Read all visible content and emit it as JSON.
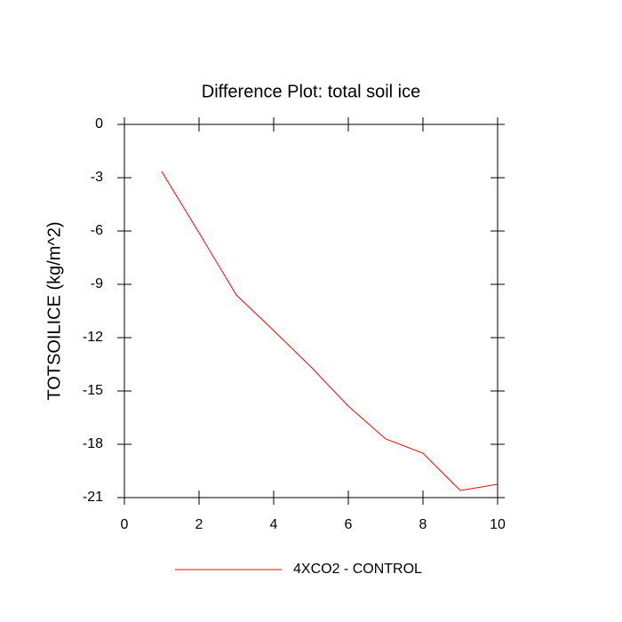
{
  "chart_data": {
    "type": "line",
    "title": "Difference Plot: total soil ice",
    "y_label": "TOTSOILICE  (kg/m^2)",
    "x": [
      1,
      2,
      3,
      4,
      5,
      6,
      7,
      8,
      9,
      10
    ],
    "series": [
      {
        "name": "4XCO2 - CONTROL",
        "color": "#ff0000",
        "values": [
          -2.65,
          -6.1,
          -9.6,
          -11.6,
          -13.65,
          -15.85,
          -17.7,
          -18.5,
          -20.6,
          -20.25
        ]
      }
    ],
    "xlim": [
      0,
      10
    ],
    "xticks": [
      0,
      2,
      4,
      6,
      8,
      10
    ],
    "ylim": [
      -21,
      0
    ],
    "yticks": [
      0,
      -3,
      -6,
      -9,
      -12,
      -15,
      -18,
      -21
    ],
    "legend": "bottom"
  }
}
